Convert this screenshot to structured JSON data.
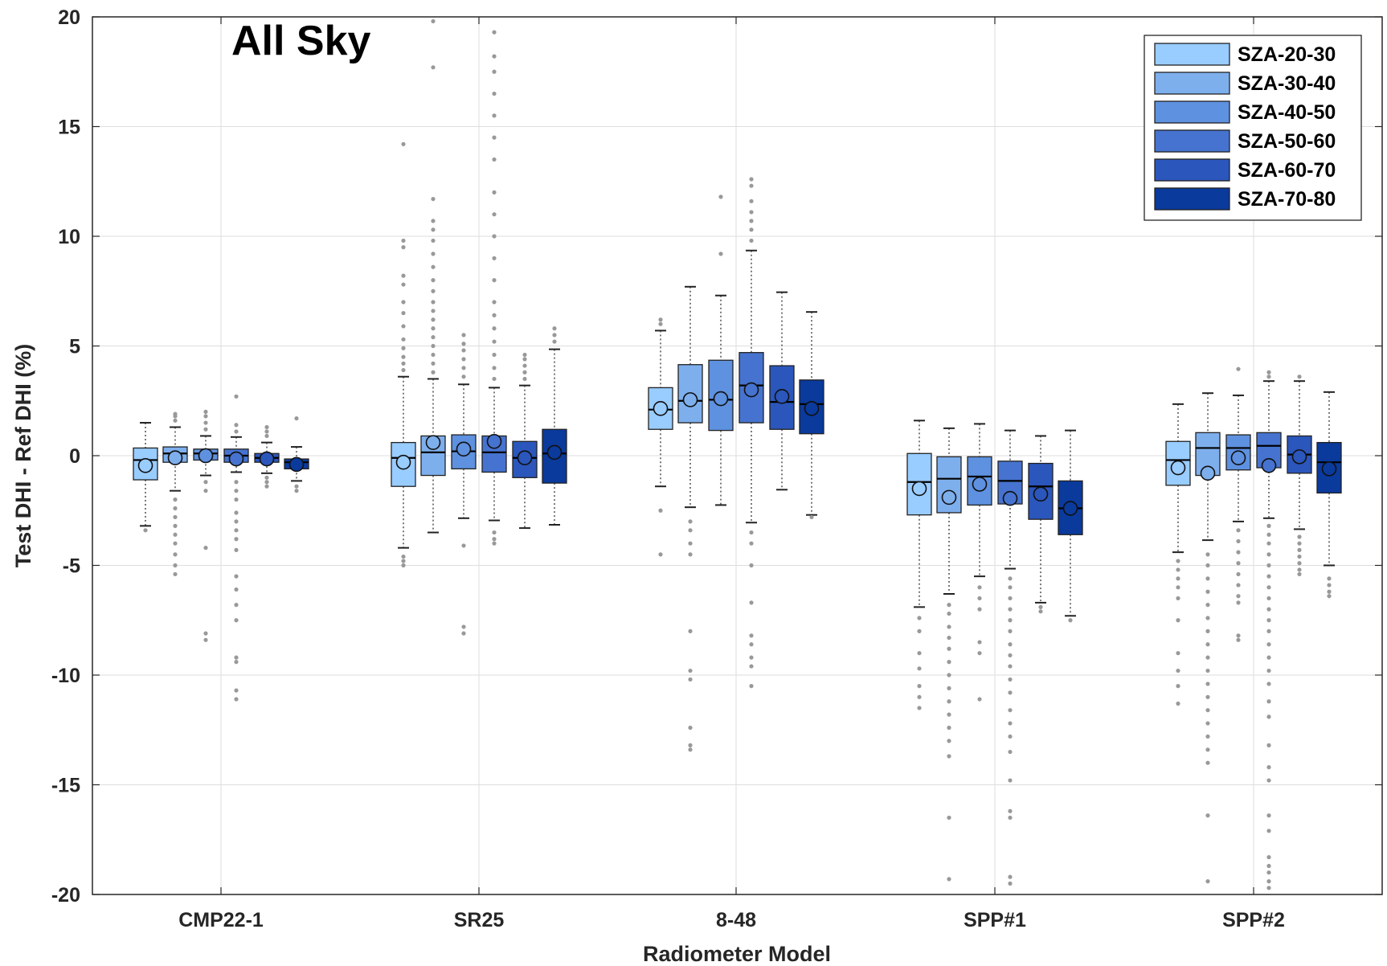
{
  "chart_data": {
    "type": "boxplot",
    "title": "All Sky",
    "xlabel": "Radiometer Model",
    "ylabel": "Test DHI  - Ref DHI (%)",
    "ylim": [
      -20,
      20
    ],
    "yticks": [
      -20,
      -15,
      -10,
      -5,
      0,
      5,
      10,
      15,
      20
    ],
    "grid": true,
    "legend_position": "top-right",
    "categories": [
      "CMP22-1",
      "SR25",
      "8-48",
      "SPP#1",
      "SPP#2"
    ],
    "colors": [
      "#99ccff",
      "#7eafed",
      "#5e91df",
      "#4673cf",
      "#2b56bb",
      "#0a3a9c"
    ],
    "series": [
      {
        "name": "SZA-20-30",
        "boxes": [
          {
            "q1": -1.1,
            "median": -0.2,
            "q3": 0.35,
            "mean": -0.45,
            "whisker_low": -3.2,
            "whisker_high": 1.5,
            "outliers": [
              -3.4
            ]
          },
          {
            "q1": -1.4,
            "median": -0.1,
            "q3": 0.6,
            "mean": -0.3,
            "whisker_low": -4.2,
            "whisker_high": 3.6,
            "outliers": [
              -4.6,
              -4.8,
              -5.0,
              3.9,
              4.2,
              4.5,
              4.9,
              5.3,
              5.9,
              6.5,
              7.0,
              7.8,
              8.2,
              9.5,
              9.8,
              14.2
            ]
          },
          {
            "q1": 1.2,
            "median": 2.1,
            "q3": 3.1,
            "mean": 2.15,
            "whisker_low": -1.4,
            "whisker_high": 5.7,
            "outliers": [
              -2.5,
              -4.5,
              6.0,
              6.2
            ]
          },
          {
            "q1": -2.7,
            "median": -1.2,
            "q3": 0.1,
            "mean": -1.5,
            "whisker_low": -6.9,
            "whisker_high": 1.6,
            "outliers": [
              -7.4,
              -8.0,
              -9.0,
              -9.7,
              -10.5,
              -11.0,
              -11.5
            ]
          },
          {
            "q1": -1.35,
            "median": -0.2,
            "q3": 0.65,
            "mean": -0.55,
            "whisker_low": -4.4,
            "whisker_high": 2.35,
            "outliers": [
              -4.8,
              -5.2,
              -5.6,
              -6.0,
              -6.5,
              -7.5,
              -9.0,
              -9.8,
              -10.5,
              -11.3
            ]
          }
        ]
      },
      {
        "name": "SZA-30-40",
        "boxes": [
          {
            "q1": -0.3,
            "median": 0.1,
            "q3": 0.4,
            "mean": -0.1,
            "whisker_low": -1.6,
            "whisker_high": 1.3,
            "outliers": [
              -2.0,
              -2.4,
              -2.8,
              -3.2,
              -3.6,
              -4.0,
              -4.5,
              -5.0,
              -5.4,
              1.6,
              1.8,
              1.9
            ]
          },
          {
            "q1": -0.9,
            "median": 0.15,
            "q3": 0.9,
            "mean": 0.6,
            "whisker_low": -3.5,
            "whisker_high": 3.5,
            "outliers": [
              3.8,
              4.2,
              4.6,
              5.0,
              5.4,
              5.8,
              6.2,
              6.6,
              7.0,
              7.5,
              8.0,
              8.6,
              9.2,
              9.8,
              10.3,
              10.7,
              11.7,
              17.7,
              19.8
            ]
          },
          {
            "q1": 1.5,
            "median": 2.5,
            "q3": 4.15,
            "mean": 2.55,
            "whisker_low": -2.35,
            "whisker_high": 7.7,
            "outliers": [
              -3.0,
              -3.4,
              -4.0,
              -4.5,
              -8.0,
              -9.8,
              -10.2,
              -12.4,
              -13.2,
              -13.4
            ]
          },
          {
            "q1": -2.6,
            "median": -1.05,
            "q3": -0.05,
            "mean": -1.9,
            "whisker_low": -6.3,
            "whisker_high": 1.25,
            "outliers": [
              -6.8,
              -7.2,
              -7.8,
              -8.3,
              -8.8,
              -9.4,
              -10.0,
              -10.6,
              -11.2,
              -11.8,
              -12.4,
              -13.0,
              -13.7,
              -16.5,
              -19.3
            ]
          },
          {
            "q1": -0.9,
            "median": 0.35,
            "q3": 1.05,
            "mean": -0.8,
            "whisker_low": -3.85,
            "whisker_high": 2.85,
            "outliers": [
              -4.5,
              -5.0,
              -5.6,
              -6.2,
              -6.8,
              -7.4,
              -8.0,
              -8.6,
              -9.2,
              -9.8,
              -10.4,
              -11.0,
              -11.6,
              -12.2,
              -12.8,
              -13.4,
              -14.0,
              -16.4,
              -19.4
            ]
          }
        ]
      },
      {
        "name": "SZA-40-50",
        "boxes": [
          {
            "q1": -0.2,
            "median": 0.1,
            "q3": 0.3,
            "mean": 0.0,
            "whisker_low": -0.9,
            "whisker_high": 0.9,
            "outliers": [
              -1.2,
              -1.6,
              -4.2,
              -8.1,
              -8.4,
              1.2,
              1.5,
              1.8,
              2.0
            ]
          },
          {
            "q1": -0.6,
            "median": 0.2,
            "q3": 0.95,
            "mean": 0.3,
            "whisker_low": -2.85,
            "whisker_high": 3.25,
            "outliers": [
              -4.1,
              -7.8,
              -8.1,
              3.6,
              4.0,
              4.4,
              4.8,
              5.1,
              5.5
            ]
          },
          {
            "q1": 1.15,
            "median": 2.55,
            "q3": 4.35,
            "mean": 2.6,
            "whisker_low": -2.25,
            "whisker_high": 7.3,
            "outliers": [
              9.2,
              11.8
            ]
          },
          {
            "q1": -2.25,
            "median": -0.95,
            "q3": -0.05,
            "mean": -1.3,
            "whisker_low": -5.5,
            "whisker_high": 1.45,
            "outliers": [
              -6.0,
              -6.5,
              -7.0,
              -8.5,
              -9.0,
              -11.1
            ]
          },
          {
            "q1": -0.65,
            "median": 0.35,
            "q3": 0.95,
            "mean": -0.1,
            "whisker_low": -3.0,
            "whisker_high": 2.75,
            "outliers": [
              -3.4,
              -3.9,
              -4.4,
              -4.9,
              -5.4,
              -5.9,
              -6.4,
              -6.7,
              -8.2,
              -8.4,
              3.95
            ]
          }
        ]
      },
      {
        "name": "SZA-50-60",
        "boxes": [
          {
            "q1": -0.3,
            "median": 0.0,
            "q3": 0.3,
            "mean": -0.15,
            "whisker_low": -0.75,
            "whisker_high": 0.85,
            "outliers": [
              -1.2,
              -1.6,
              -2.0,
              -2.6,
              -3.0,
              -3.4,
              -3.8,
              -4.3,
              -5.5,
              -6.1,
              -6.8,
              -7.5,
              -9.2,
              -9.4,
              -10.7,
              -11.1,
              1.1,
              1.4,
              2.7
            ]
          },
          {
            "q1": -0.75,
            "median": 0.15,
            "q3": 0.9,
            "mean": 0.65,
            "whisker_low": -2.95,
            "whisker_high": 3.1,
            "outliers": [
              -3.5,
              -3.8,
              -4.0,
              3.5,
              4.0,
              4.6,
              5.2,
              5.8,
              6.4,
              7.0,
              8.0,
              9.0,
              10.0,
              11.0,
              12.0,
              13.5,
              14.5,
              15.5,
              16.5,
              17.5,
              18.2,
              19.3
            ]
          },
          {
            "q1": 1.5,
            "median": 3.2,
            "q3": 4.7,
            "mean": 3.0,
            "whisker_low": -3.05,
            "whisker_high": 9.35,
            "outliers": [
              -3.5,
              -4.0,
              -5.0,
              -6.7,
              -8.2,
              -8.6,
              -9.2,
              -9.6,
              -10.5,
              9.8,
              10.3,
              10.7,
              11.1,
              11.6,
              12.3,
              12.6
            ]
          },
          {
            "q1": -2.2,
            "median": -1.15,
            "q3": -0.25,
            "mean": -1.95,
            "whisker_low": -5.15,
            "whisker_high": 1.15,
            "outliers": [
              -5.6,
              -6.0,
              -6.5,
              -7.0,
              -7.5,
              -8.0,
              -8.6,
              -9.1,
              -9.6,
              -10.2,
              -10.8,
              -11.6,
              -12.2,
              -12.8,
              -13.5,
              -14.8,
              -16.2,
              -16.5,
              -19.2,
              -19.5
            ]
          },
          {
            "q1": -0.55,
            "median": 0.45,
            "q3": 1.05,
            "mean": -0.45,
            "whisker_low": -2.85,
            "whisker_high": 3.4,
            "outliers": [
              -3.2,
              -3.6,
              -4.0,
              -4.5,
              -5.0,
              -5.5,
              -6.0,
              -6.5,
              -7.0,
              -7.5,
              -8.0,
              -8.6,
              -9.2,
              -9.8,
              -10.4,
              -11.2,
              -11.9,
              -13.2,
              -14.2,
              -14.8,
              -16.4,
              -17.1,
              -18.3,
              -18.7,
              -19.0,
              -19.4,
              -19.7,
              3.6,
              3.8
            ]
          }
        ]
      },
      {
        "name": "SZA-60-70",
        "boxes": [
          {
            "q1": -0.3,
            "median": -0.1,
            "q3": 0.1,
            "mean": -0.15,
            "whisker_low": -0.8,
            "whisker_high": 0.6,
            "outliers": [
              -1.0,
              -1.2,
              -1.4,
              0.9,
              1.1,
              1.3
            ]
          },
          {
            "q1": -1.0,
            "median": -0.1,
            "q3": 0.65,
            "mean": -0.1,
            "whisker_low": -3.3,
            "whisker_high": 3.2,
            "outliers": [
              3.5,
              3.8,
              4.1,
              4.4,
              4.6
            ]
          },
          {
            "q1": 1.2,
            "median": 2.45,
            "q3": 4.1,
            "mean": 2.7,
            "whisker_low": -1.55,
            "whisker_high": 7.45,
            "outliers": []
          },
          {
            "q1": -2.9,
            "median": -1.4,
            "q3": -0.35,
            "mean": -1.75,
            "whisker_low": -6.7,
            "whisker_high": 0.9,
            "outliers": [
              -6.9,
              -7.1
            ]
          },
          {
            "q1": -0.8,
            "median": 0.05,
            "q3": 0.9,
            "mean": -0.05,
            "whisker_low": -3.35,
            "whisker_high": 3.4,
            "outliers": [
              -3.7,
              -4.0,
              -4.3,
              -4.6,
              -4.9,
              -5.2,
              -5.4,
              3.6
            ]
          }
        ]
      },
      {
        "name": "SZA-70-80",
        "boxes": [
          {
            "q1": -0.6,
            "median": -0.3,
            "q3": -0.15,
            "mean": -0.4,
            "whisker_low": -1.15,
            "whisker_high": 0.4,
            "outliers": [
              -1.4,
              -1.6,
              1.7
            ]
          },
          {
            "q1": -1.25,
            "median": 0.1,
            "q3": 1.2,
            "mean": 0.15,
            "whisker_low": -3.15,
            "whisker_high": 4.85,
            "outliers": [
              5.2,
              5.5,
              5.8
            ]
          },
          {
            "q1": 1.0,
            "median": 2.35,
            "q3": 3.45,
            "mean": 2.15,
            "whisker_low": -2.7,
            "whisker_high": 6.55,
            "outliers": [
              -2.8
            ]
          },
          {
            "q1": -3.6,
            "median": -2.4,
            "q3": -1.15,
            "mean": -2.4,
            "whisker_low": -7.3,
            "whisker_high": 1.15,
            "outliers": [
              -7.5
            ]
          },
          {
            "q1": -1.7,
            "median": -0.3,
            "q3": 0.6,
            "mean": -0.6,
            "whisker_low": -5.0,
            "whisker_high": 2.9,
            "outliers": [
              -5.6,
              -5.9,
              -6.2,
              -6.4
            ]
          }
        ]
      }
    ]
  }
}
